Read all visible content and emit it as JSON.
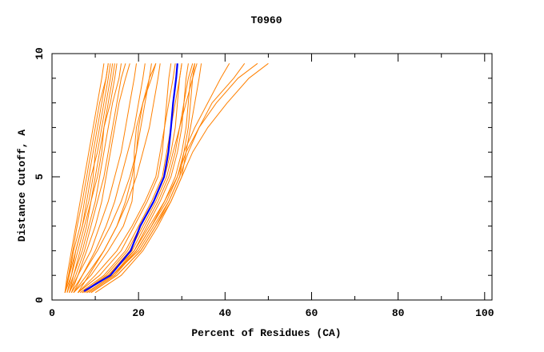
{
  "chart_data": {
    "type": "line",
    "title": "T0960",
    "xlabel": "Percent of Residues (CA)",
    "ylabel": "Distance Cutoff, A",
    "xlim": [
      0,
      101.7
    ],
    "ylim": [
      0,
      10
    ],
    "x_ticks": [
      0,
      20,
      40,
      60,
      80,
      100
    ],
    "x_minor_ticks": [
      10,
      30,
      50,
      70,
      90
    ],
    "y_ticks": [
      0,
      5,
      10
    ],
    "y_minor_ticks": [
      1,
      2,
      3,
      4,
      6,
      7,
      8,
      9
    ],
    "grid": false,
    "colors": {
      "models": "#ff8000",
      "highlight": "#0000ff",
      "axes": "#000000"
    },
    "y_levels": [
      0.3,
      1,
      2,
      3,
      4,
      5,
      6,
      7,
      8,
      9,
      9.6
    ],
    "model_curves_x": [
      [
        3,
        3.5,
        4.5,
        5.5,
        6.5,
        7.5,
        8.5,
        9.5,
        10.5,
        11.5,
        12
      ],
      [
        3,
        4,
        5,
        6.5,
        7.5,
        8.5,
        9.5,
        10.5,
        11.5,
        12.5,
        13
      ],
      [
        3.5,
        4.5,
        5.5,
        7,
        8,
        9,
        10.5,
        11.5,
        12.5,
        13.5,
        14
      ],
      [
        4,
        5,
        6.5,
        8,
        9,
        10,
        11,
        12,
        13.5,
        14.5,
        15
      ],
      [
        3,
        4,
        5.5,
        7,
        8.5,
        9.5,
        10,
        11,
        12,
        13,
        13.5
      ],
      [
        3.5,
        5,
        7,
        8.5,
        10,
        11,
        12,
        13,
        14,
        15.5,
        16
      ],
      [
        4,
        5.5,
        7.5,
        9,
        10.5,
        12,
        13,
        14,
        15,
        16,
        17
      ],
      [
        3,
        3.8,
        4.8,
        5.8,
        7,
        8,
        9,
        10,
        11,
        12.5,
        13
      ],
      [
        4.5,
        6,
        8,
        10,
        11.5,
        12.5,
        13.5,
        14.5,
        15.5,
        17,
        18
      ],
      [
        3,
        4.5,
        6,
        7.5,
        9,
        10.5,
        11.5,
        12,
        13,
        14,
        14.5
      ],
      [
        4,
        6,
        9,
        11,
        13,
        14.5,
        16,
        17,
        18,
        19,
        19.5
      ],
      [
        5,
        7,
        10,
        12.5,
        14.5,
        16,
        17.5,
        19,
        20,
        21,
        21.5
      ],
      [
        4.5,
        7,
        10.5,
        13.5,
        16,
        18,
        19.5,
        20.5,
        21.5,
        22.5,
        23
      ],
      [
        6,
        8.5,
        12,
        15,
        17,
        18.5,
        19.5,
        20,
        21,
        22.5,
        24
      ],
      [
        5,
        8,
        12,
        15,
        17.5,
        19.5,
        21,
        22.5,
        23.5,
        24.5,
        25
      ],
      [
        5,
        9,
        13,
        16.5,
        18.5,
        19,
        19,
        19.5,
        21,
        23,
        24
      ],
      [
        6,
        11,
        16,
        19,
        22,
        24.5,
        25.5,
        26,
        26.5,
        27,
        27.5
      ],
      [
        7,
        12.5,
        17.5,
        20.5,
        23.5,
        26,
        27.5,
        28.5,
        29,
        29.5,
        30
      ],
      [
        8,
        14,
        19,
        22,
        25,
        27.5,
        29,
        30,
        30.5,
        31,
        31.5
      ],
      [
        9,
        15,
        20.5,
        24,
        27,
        29.5,
        30.5,
        31.5,
        32,
        32.5,
        33
      ],
      [
        6.5,
        12,
        17,
        20,
        23,
        25.5,
        26.5,
        27.5,
        28.5,
        29.5,
        30
      ],
      [
        7.5,
        13,
        18.5,
        21.5,
        24.5,
        27,
        28.5,
        29.5,
        30.5,
        31.5,
        32.5
      ],
      [
        10,
        16,
        21,
        24.5,
        27.5,
        30,
        31,
        32,
        33,
        34,
        34.5
      ],
      [
        8.5,
        14.5,
        19.5,
        23,
        26,
        28.5,
        30,
        31,
        31.5,
        32,
        33
      ],
      [
        6,
        10,
        15,
        18.5,
        21.5,
        24,
        25,
        26,
        27,
        28,
        28.5
      ],
      [
        7,
        13,
        18,
        21,
        24,
        26.5,
        28,
        29.5,
        31,
        32.5,
        33.5
      ],
      [
        8,
        14,
        19.5,
        23,
        26.5,
        29,
        31,
        34,
        38,
        43,
        47.5
      ],
      [
        9,
        15,
        20.5,
        24,
        27.5,
        30,
        32.5,
        36,
        40.5,
        45.5,
        50
      ],
      [
        7,
        13,
        19,
        22.5,
        26,
        29,
        30.5,
        33,
        36,
        39,
        41
      ],
      [
        8,
        14,
        20,
        23.5,
        27,
        29.5,
        31.5,
        34,
        37,
        42,
        44.5
      ]
    ],
    "highlight_curve": {
      "x": [
        7.4,
        13.5,
        18.2,
        20.4,
        23.5,
        25.9,
        26.9,
        27.5,
        28.0,
        28.7,
        29.0
      ],
      "y": [
        0.36,
        1,
        2,
        3,
        4,
        5,
        6,
        7,
        8,
        9,
        9.6
      ]
    }
  }
}
